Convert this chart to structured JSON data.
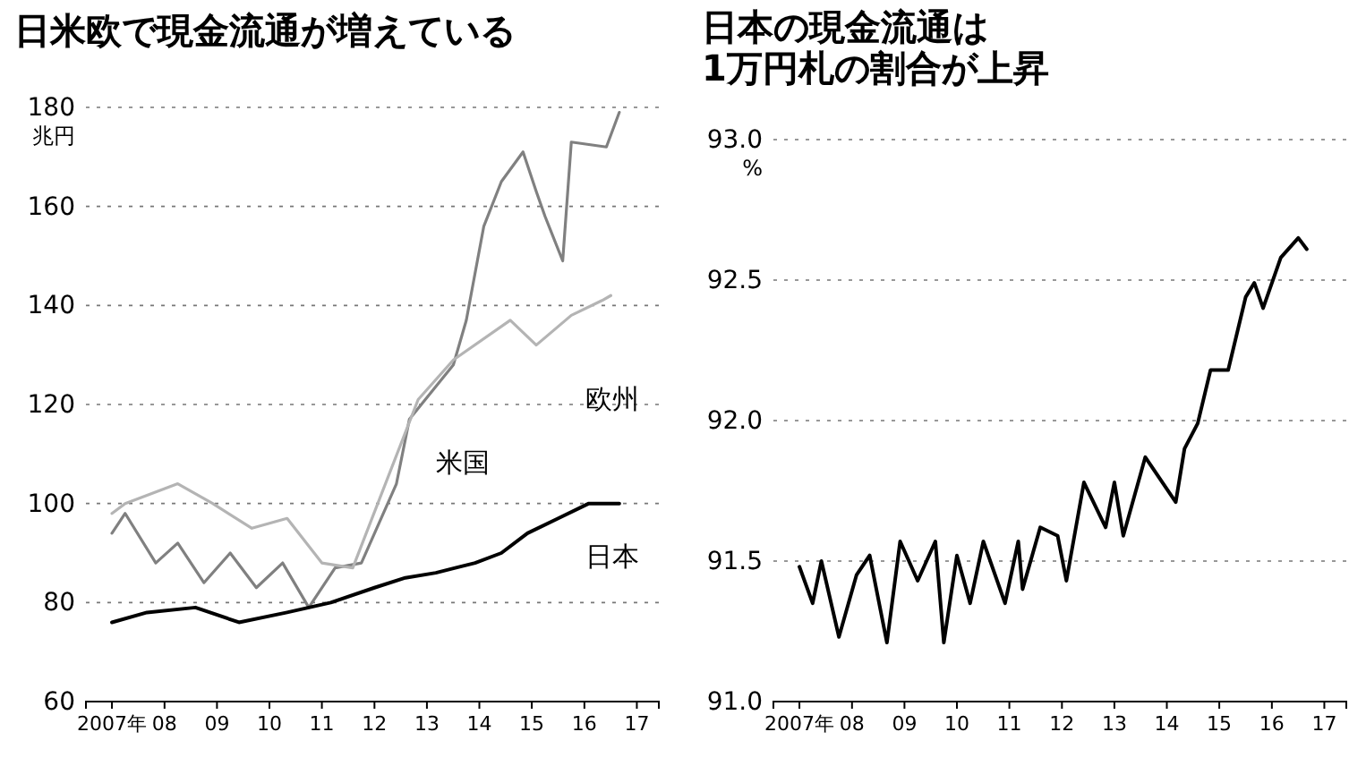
{
  "chart_data": [
    {
      "type": "line",
      "title": "日米欧で現金流通が増えている",
      "ylabel": "兆円",
      "xlim": [
        "2007-01",
        "2017-12"
      ],
      "ylim": [
        60,
        180
      ],
      "yticks": [
        60,
        80,
        100,
        120,
        140,
        160,
        180
      ],
      "xticks": [
        {
          "value": "2007-07",
          "label": "2007年"
        },
        {
          "value": "2008-07",
          "label": "08"
        },
        {
          "value": "2009-07",
          "label": "09"
        },
        {
          "value": "2010-07",
          "label": "10"
        },
        {
          "value": "2011-07",
          "label": "11"
        },
        {
          "value": "2012-07",
          "label": "12"
        },
        {
          "value": "2013-07",
          "label": "13"
        },
        {
          "value": "2014-07",
          "label": "14"
        },
        {
          "value": "2015-07",
          "label": "15"
        },
        {
          "value": "2016-07",
          "label": "16"
        },
        {
          "value": "2017-07",
          "label": "17"
        }
      ],
      "grid": "y",
      "series": [
        {
          "name": "米国",
          "color": "#808080",
          "x": [
            "2007-07",
            "2007-10",
            "2008-05",
            "2008-10",
            "2009-04",
            "2009-10",
            "2010-04",
            "2010-10",
            "2011-04",
            "2011-10",
            "2012-04",
            "2012-12",
            "2013-03",
            "2014-01",
            "2014-04",
            "2014-08",
            "2014-12",
            "2015-05",
            "2015-08",
            "2015-10",
            "2016-02",
            "2016-04",
            "2016-12",
            "2017-03"
          ],
          "values": [
            94,
            98,
            88,
            92,
            84,
            90,
            83,
            88,
            79,
            87,
            88,
            104,
            117,
            128,
            137,
            156,
            165,
            171,
            163,
            158,
            149,
            173,
            172,
            179
          ]
        },
        {
          "name": "欧州",
          "color": "#b4b4b4",
          "x": [
            "2007-07",
            "2007-10",
            "2008-10",
            "2009-06",
            "2010-03",
            "2010-11",
            "2011-07",
            "2012-02",
            "2013-05",
            "2014-01",
            "2015-02",
            "2015-08",
            "2016-04",
            "2016-11",
            "2017-01"
          ],
          "values": [
            98,
            100,
            104,
            100,
            95,
            97,
            88,
            87,
            121,
            129,
            137,
            132,
            138,
            141,
            142
          ]
        },
        {
          "name": "日本",
          "color": "#000000",
          "x": [
            "2007-07",
            "2008-03",
            "2009-02",
            "2009-12",
            "2010-11",
            "2011-09",
            "2012-07",
            "2013-02",
            "2013-09",
            "2014-06",
            "2014-12",
            "2015-06",
            "2016-01",
            "2016-08",
            "2017-03"
          ],
          "values": [
            76,
            78,
            79,
            76,
            78,
            80,
            83,
            85,
            86,
            88,
            90,
            94,
            97,
            100,
            100
          ]
        }
      ]
    },
    {
      "type": "line",
      "title": "日本の現金流通は\n1万円札の割合が上昇",
      "ylabel": "%",
      "xlim": [
        "2007-01",
        "2017-12"
      ],
      "ylim": [
        91.0,
        93.0
      ],
      "yticks": [
        {
          "value": 91,
          "label": "91.0"
        },
        {
          "value": 91.5,
          "label": "91.5"
        },
        {
          "value": 92,
          "label": "92.0"
        },
        {
          "value": 92.5,
          "label": "92.5"
        },
        {
          "value": 93,
          "label": "93.0"
        }
      ],
      "xticks": [
        {
          "value": "2007-07",
          "label": "2007年"
        },
        {
          "value": "2008-07",
          "label": "08"
        },
        {
          "value": "2009-07",
          "label": "09"
        },
        {
          "value": "2010-07",
          "label": "10"
        },
        {
          "value": "2011-07",
          "label": "11"
        },
        {
          "value": "2012-07",
          "label": "12"
        },
        {
          "value": "2013-07",
          "label": "13"
        },
        {
          "value": "2014-07",
          "label": "14"
        },
        {
          "value": "2015-07",
          "label": "15"
        },
        {
          "value": "2016-07",
          "label": "16"
        },
        {
          "value": "2017-07",
          "label": "17"
        }
      ],
      "grid": "y",
      "series": [
        {
          "color": "#000000",
          "x": [
            "2007-07",
            "2007-10",
            "2007-12",
            "2008-04",
            "2008-08",
            "2008-11",
            "2009-03",
            "2009-06",
            "2009-10",
            "2010-02",
            "2010-04",
            "2010-07",
            "2010-10",
            "2011-01",
            "2011-06",
            "2011-09",
            "2011-10",
            "2012-02",
            "2012-06",
            "2012-08",
            "2012-12",
            "2013-05",
            "2013-07",
            "2013-09",
            "2014-02",
            "2014-09",
            "2014-11",
            "2015-02",
            "2015-05",
            "2015-09",
            "2016-01",
            "2016-03",
            "2016-05",
            "2016-09",
            "2017-01",
            "2017-03"
          ],
          "values": [
            91.48,
            91.35,
            91.5,
            91.23,
            91.45,
            91.52,
            91.21,
            91.57,
            91.43,
            91.57,
            91.21,
            91.52,
            91.35,
            91.57,
            91.35,
            91.57,
            91.4,
            91.62,
            91.59,
            91.43,
            91.78,
            91.62,
            91.78,
            91.59,
            91.87,
            91.71,
            91.9,
            91.99,
            92.18,
            92.18,
            92.44,
            92.49,
            92.4,
            92.58,
            92.65,
            92.61
          ]
        }
      ]
    }
  ]
}
